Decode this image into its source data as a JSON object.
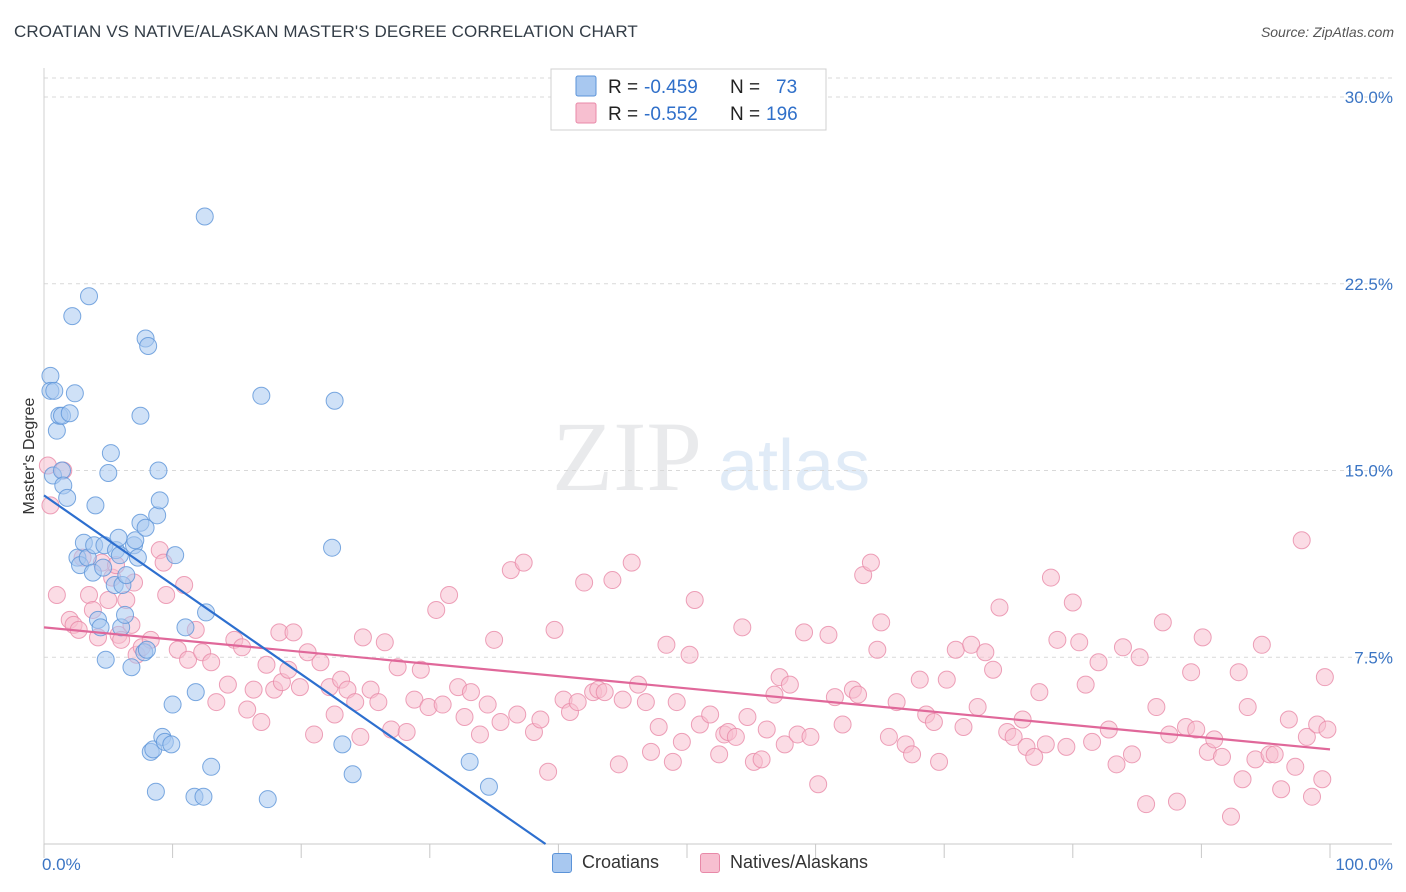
{
  "header": {
    "title": "CROATIAN VS NATIVE/ALASKAN MASTER'S DEGREE CORRELATION CHART",
    "source": "Source: ZipAtlas.com"
  },
  "watermark": {
    "zip": "ZIP",
    "atlas": "atlas"
  },
  "legend": {
    "rows": [
      {
        "r_label": "R =",
        "r_value": "-0.459",
        "n_label": "N =",
        "n_value": "73"
      },
      {
        "r_label": "R =",
        "r_value": "-0.552",
        "n_label": "N =",
        "n_value": "196"
      }
    ]
  },
  "bottom_legend": {
    "croatians": "Croatians",
    "natives": "Natives/Alaskans"
  },
  "colors": {
    "blue_fill": "#a8c8f0",
    "blue_stroke": "#5b93d8",
    "blue_line": "#2d6fcf",
    "pink_fill": "#f7bfd0",
    "pink_stroke": "#e889a8",
    "pink_line": "#e0689a",
    "tick": "#3b75c4",
    "grid": "#d9d9d9"
  },
  "chart_data": {
    "type": "scatter",
    "title": "CROATIAN VS NATIVE/ALASKAN MASTER'S DEGREE CORRELATION CHART",
    "xlabel": "",
    "ylabel": "Master's Degree",
    "xlim": [
      0,
      100
    ],
    "ylim": [
      0,
      30.0
    ],
    "x_tick_labels": [
      "0.0%",
      "100.0%"
    ],
    "y_ticks": [
      7.5,
      15.0,
      22.5,
      30.0
    ],
    "y_tick_labels": [
      "7.5%",
      "15.0%",
      "22.5%",
      "30.0%"
    ],
    "series": [
      {
        "name": "Croatians",
        "r": -0.459,
        "n": 73,
        "trend": {
          "x0": 0,
          "y0": 14.0,
          "x1": 39,
          "y1": 0
        },
        "points": [
          [
            0.5,
            18.8
          ],
          [
            0.5,
            18.2
          ],
          [
            0.8,
            18.2
          ],
          [
            1,
            16.6
          ],
          [
            1.2,
            17.2
          ],
          [
            1.4,
            17.2
          ],
          [
            0.7,
            14.8
          ],
          [
            1.4,
            15.0
          ],
          [
            1.5,
            14.4
          ],
          [
            1.8,
            13.9
          ],
          [
            2,
            17.3
          ],
          [
            2.2,
            21.2
          ],
          [
            2.4,
            18.1
          ],
          [
            2.6,
            11.5
          ],
          [
            2.8,
            11.2
          ],
          [
            3.1,
            12.1
          ],
          [
            3.4,
            11.5
          ],
          [
            3.5,
            22.0
          ],
          [
            3.8,
            10.9
          ],
          [
            3.9,
            12.0
          ],
          [
            4,
            13.6
          ],
          [
            4.2,
            9.0
          ],
          [
            4.4,
            8.7
          ],
          [
            4.6,
            11.1
          ],
          [
            4.7,
            12.0
          ],
          [
            4.8,
            7.4
          ],
          [
            5.0,
            14.9
          ],
          [
            5.2,
            15.7
          ],
          [
            5.5,
            10.4
          ],
          [
            5.6,
            11.8
          ],
          [
            5.8,
            12.3
          ],
          [
            5.9,
            11.6
          ],
          [
            6.0,
            8.7
          ],
          [
            6.3,
            9.2
          ],
          [
            6.1,
            10.4
          ],
          [
            6.4,
            10.8
          ],
          [
            6.8,
            7.1
          ],
          [
            7.0,
            12.0
          ],
          [
            7.1,
            12.2
          ],
          [
            7.3,
            11.5
          ],
          [
            7.5,
            12.9
          ],
          [
            7.5,
            17.2
          ],
          [
            7.8,
            7.7
          ],
          [
            8.0,
            7.8
          ],
          [
            7.9,
            20.3
          ],
          [
            7.9,
            12.7
          ],
          [
            8.1,
            20.0
          ],
          [
            8.3,
            3.7
          ],
          [
            8.5,
            3.8
          ],
          [
            8.7,
            2.1
          ],
          [
            8.8,
            13.2
          ],
          [
            8.9,
            15.0
          ],
          [
            9.0,
            13.8
          ],
          [
            9.2,
            4.3
          ],
          [
            9.4,
            4.1
          ],
          [
            9.9,
            4.0
          ],
          [
            10.0,
            5.6
          ],
          [
            10.2,
            11.6
          ],
          [
            11.0,
            8.7
          ],
          [
            11.7,
            1.9
          ],
          [
            11.8,
            6.1
          ],
          [
            12.4,
            1.9
          ],
          [
            12.5,
            25.2
          ],
          [
            12.6,
            9.3
          ],
          [
            13.0,
            3.1
          ],
          [
            16.9,
            18.0
          ],
          [
            17.4,
            1.8
          ],
          [
            22.4,
            11.9
          ],
          [
            22.6,
            17.8
          ],
          [
            23.2,
            4.0
          ],
          [
            24.0,
            2.8
          ],
          [
            33.1,
            3.3
          ],
          [
            34.6,
            2.3
          ]
        ]
      },
      {
        "name": "Natives/Alaskans",
        "r": -0.552,
        "n": 196,
        "trend": {
          "x0": 0,
          "y0": 8.7,
          "x1": 100,
          "y1": 3.8
        },
        "points": [
          [
            0.3,
            15.2
          ],
          [
            0.5,
            13.6
          ],
          [
            1,
            10.0
          ],
          [
            1.5,
            15.0
          ],
          [
            2.0,
            9.0
          ],
          [
            2.3,
            8.8
          ],
          [
            2.7,
            8.6
          ],
          [
            3.0,
            11.5
          ],
          [
            3.5,
            10.0
          ],
          [
            3.8,
            9.4
          ],
          [
            4.2,
            8.3
          ],
          [
            4.5,
            11.3
          ],
          [
            5.0,
            9.8
          ],
          [
            5.3,
            10.7
          ],
          [
            5.6,
            11.2
          ],
          [
            5.8,
            8.4
          ],
          [
            6.0,
            8.2
          ],
          [
            6.4,
            9.8
          ],
          [
            6.8,
            8.8
          ],
          [
            7.0,
            10.5
          ],
          [
            7.2,
            7.6
          ],
          [
            7.6,
            7.9
          ],
          [
            8.3,
            8.2
          ],
          [
            9.0,
            11.8
          ],
          [
            9.3,
            11.3
          ],
          [
            9.5,
            10.0
          ],
          [
            10.4,
            7.8
          ],
          [
            10.9,
            10.4
          ],
          [
            11.2,
            7.4
          ],
          [
            11.8,
            8.6
          ],
          [
            12.3,
            7.7
          ],
          [
            13.0,
            7.3
          ],
          [
            13.4,
            5.7
          ],
          [
            14.3,
            6.4
          ],
          [
            14.8,
            8.2
          ],
          [
            15.4,
            7.9
          ],
          [
            15.8,
            5.4
          ],
          [
            16.3,
            6.2
          ],
          [
            16.9,
            4.9
          ],
          [
            17.3,
            7.2
          ],
          [
            17.9,
            6.2
          ],
          [
            18.3,
            8.5
          ],
          [
            18.5,
            6.5
          ],
          [
            19.0,
            7.0
          ],
          [
            19.4,
            8.5
          ],
          [
            19.9,
            6.3
          ],
          [
            20.5,
            7.7
          ],
          [
            21.0,
            4.4
          ],
          [
            21.5,
            7.3
          ],
          [
            22.2,
            6.3
          ],
          [
            22.6,
            5.2
          ],
          [
            23.1,
            6.6
          ],
          [
            23.6,
            6.2
          ],
          [
            24.2,
            5.7
          ],
          [
            24.6,
            4.3
          ],
          [
            24.8,
            8.3
          ],
          [
            25.4,
            6.2
          ],
          [
            26.0,
            5.7
          ],
          [
            26.5,
            8.1
          ],
          [
            27.0,
            4.6
          ],
          [
            27.5,
            7.1
          ],
          [
            28.2,
            4.5
          ],
          [
            28.8,
            5.8
          ],
          [
            29.3,
            7.0
          ],
          [
            29.9,
            5.5
          ],
          [
            30.5,
            9.4
          ],
          [
            31.0,
            5.6
          ],
          [
            31.5,
            10.0
          ],
          [
            32.2,
            6.3
          ],
          [
            32.7,
            5.1
          ],
          [
            33.2,
            6.1
          ],
          [
            33.9,
            4.4
          ],
          [
            34.5,
            5.6
          ],
          [
            35.0,
            8.2
          ],
          [
            35.5,
            4.9
          ],
          [
            36.3,
            11.0
          ],
          [
            36.8,
            5.2
          ],
          [
            37.3,
            11.3
          ],
          [
            38.1,
            4.5
          ],
          [
            38.6,
            5.0
          ],
          [
            39.2,
            2.9
          ],
          [
            39.7,
            8.6
          ],
          [
            40.4,
            5.8
          ],
          [
            40.9,
            5.3
          ],
          [
            41.5,
            5.7
          ],
          [
            42.0,
            10.5
          ],
          [
            42.7,
            6.1
          ],
          [
            43.1,
            6.2
          ],
          [
            43.6,
            6.1
          ],
          [
            44.2,
            10.6
          ],
          [
            44.7,
            3.2
          ],
          [
            45.0,
            5.8
          ],
          [
            45.7,
            11.3
          ],
          [
            46.2,
            6.4
          ],
          [
            46.8,
            5.7
          ],
          [
            47.2,
            3.7
          ],
          [
            47.8,
            4.7
          ],
          [
            48.4,
            8.0
          ],
          [
            48.9,
            3.3
          ],
          [
            49.2,
            5.7
          ],
          [
            49.6,
            4.1
          ],
          [
            50.2,
            7.6
          ],
          [
            50.6,
            9.8
          ],
          [
            51.0,
            4.8
          ],
          [
            51.8,
            5.2
          ],
          [
            52.5,
            3.6
          ],
          [
            52.9,
            4.4
          ],
          [
            53.2,
            4.5
          ],
          [
            53.8,
            4.3
          ],
          [
            54.3,
            8.7
          ],
          [
            54.7,
            5.1
          ],
          [
            55.2,
            3.3
          ],
          [
            55.8,
            3.4
          ],
          [
            56.2,
            4.6
          ],
          [
            56.8,
            6.0
          ],
          [
            57.2,
            6.7
          ],
          [
            57.6,
            4.0
          ],
          [
            58.0,
            6.4
          ],
          [
            58.6,
            4.4
          ],
          [
            59.1,
            8.5
          ],
          [
            59.6,
            4.3
          ],
          [
            60.2,
            2.4
          ],
          [
            61.0,
            8.4
          ],
          [
            61.5,
            5.9
          ],
          [
            62.1,
            4.8
          ],
          [
            62.9,
            6.2
          ],
          [
            63.3,
            6.0
          ],
          [
            63.7,
            10.8
          ],
          [
            64.3,
            11.3
          ],
          [
            64.8,
            7.8
          ],
          [
            65.1,
            8.9
          ],
          [
            65.7,
            4.3
          ],
          [
            66.3,
            5.7
          ],
          [
            67.0,
            4.0
          ],
          [
            67.5,
            3.6
          ],
          [
            68.1,
            6.6
          ],
          [
            68.6,
            5.2
          ],
          [
            69.2,
            4.9
          ],
          [
            69.6,
            3.3
          ],
          [
            70.2,
            6.6
          ],
          [
            70.9,
            7.8
          ],
          [
            71.5,
            4.7
          ],
          [
            72.1,
            8.0
          ],
          [
            72.6,
            5.5
          ],
          [
            73.2,
            7.7
          ],
          [
            73.8,
            7.0
          ],
          [
            74.3,
            9.5
          ],
          [
            74.9,
            4.5
          ],
          [
            75.4,
            4.3
          ],
          [
            76.1,
            5.0
          ],
          [
            76.4,
            3.9
          ],
          [
            77.0,
            3.5
          ],
          [
            77.4,
            6.1
          ],
          [
            77.9,
            4.0
          ],
          [
            78.3,
            10.7
          ],
          [
            78.8,
            8.2
          ],
          [
            79.5,
            3.9
          ],
          [
            80.0,
            9.7
          ],
          [
            80.5,
            8.1
          ],
          [
            81.0,
            6.4
          ],
          [
            81.5,
            4.1
          ],
          [
            82.0,
            7.3
          ],
          [
            82.8,
            4.6
          ],
          [
            83.4,
            3.2
          ],
          [
            83.9,
            7.9
          ],
          [
            84.6,
            3.6
          ],
          [
            85.2,
            7.5
          ],
          [
            85.7,
            1.6
          ],
          [
            86.5,
            5.5
          ],
          [
            87.0,
            8.9
          ],
          [
            87.5,
            4.4
          ],
          [
            88.1,
            1.7
          ],
          [
            88.8,
            4.7
          ],
          [
            89.2,
            6.9
          ],
          [
            89.6,
            4.6
          ],
          [
            90.1,
            8.3
          ],
          [
            90.5,
            3.7
          ],
          [
            91.0,
            4.2
          ],
          [
            91.6,
            3.5
          ],
          [
            92.3,
            1.1
          ],
          [
            92.9,
            6.9
          ],
          [
            93.2,
            2.6
          ],
          [
            93.6,
            5.5
          ],
          [
            94.2,
            3.4
          ],
          [
            94.7,
            8.0
          ],
          [
            95.3,
            3.6
          ],
          [
            95.7,
            3.6
          ],
          [
            96.2,
            2.2
          ],
          [
            96.8,
            5.0
          ],
          [
            97.3,
            3.1
          ],
          [
            97.8,
            12.2
          ],
          [
            98.2,
            4.3
          ],
          [
            98.6,
            1.9
          ],
          [
            99.0,
            4.8
          ],
          [
            99.4,
            2.6
          ],
          [
            99.6,
            6.7
          ],
          [
            99.8,
            4.6
          ]
        ]
      }
    ]
  }
}
